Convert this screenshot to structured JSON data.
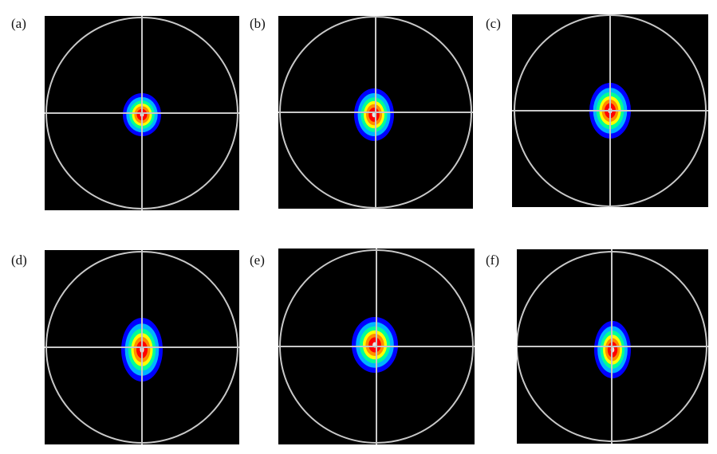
{
  "panels": [
    {
      "id": "a",
      "label": "(a)"
    },
    {
      "id": "b",
      "label": "(b)"
    },
    {
      "id": "c",
      "label": "(c)"
    },
    {
      "id": "d",
      "label": "(d)"
    },
    {
      "id": "e",
      "label": "(e)"
    },
    {
      "id": "f",
      "label": "(f)"
    }
  ],
  "colors": {
    "background": "#000000",
    "overlay": "#c8c8c8",
    "ramp": [
      "#0000ff",
      "#00b4ff",
      "#00ff96",
      "#ffff00",
      "#ff8c00",
      "#ff0000",
      "#e6e6e6"
    ]
  }
}
